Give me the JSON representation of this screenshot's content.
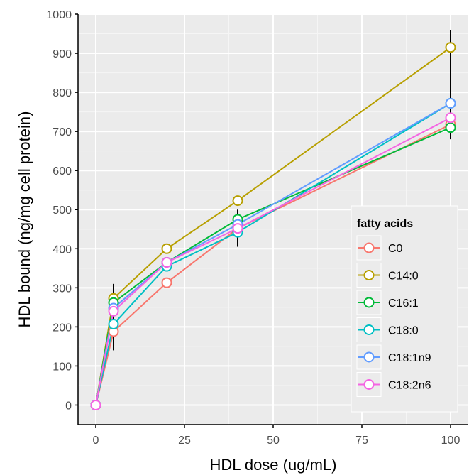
{
  "chart_data": {
    "type": "line",
    "xlabel": "HDL dose (ug/mL)",
    "ylabel": "HDL bound (ng/mg cell protein)",
    "x": [
      0,
      5,
      20,
      40,
      100
    ],
    "xlim": [
      -5,
      105
    ],
    "ylim": [
      -50,
      1000
    ],
    "xticks": [
      "0",
      "25",
      "50",
      "75",
      "100"
    ],
    "yticks": [
      "0",
      "100",
      "200",
      "300",
      "400",
      "500",
      "600",
      "700",
      "800",
      "900",
      "1000"
    ],
    "grid": true,
    "legend": {
      "title": "fatty acids",
      "placement": "right"
    },
    "series": [
      {
        "name": "C0",
        "color": "#F8766D",
        "values": [
          0,
          188,
          313,
          452,
          718
        ]
      },
      {
        "name": "C14:0",
        "color": "#B79F00",
        "values": [
          0,
          273,
          400,
          523,
          915
        ]
      },
      {
        "name": "C16:1",
        "color": "#00BA38",
        "values": [
          0,
          262,
          365,
          475,
          710
        ]
      },
      {
        "name": "C18:0",
        "color": "#00BFC4",
        "values": [
          0,
          207,
          355,
          442,
          772
        ]
      },
      {
        "name": "C18:1n9",
        "color": "#619CFF",
        "values": [
          0,
          248,
          365,
          462,
          772
        ]
      },
      {
        "name": "C18:2n6",
        "color": "#F564E3",
        "values": [
          0,
          240,
          365,
          452,
          735
        ]
      }
    ],
    "error_bars": [
      {
        "x": 5,
        "low": 140,
        "high": 310
      },
      {
        "x": 40,
        "low": 405,
        "high": 500
      },
      {
        "x": 100,
        "low": 680,
        "high": 960
      }
    ]
  }
}
